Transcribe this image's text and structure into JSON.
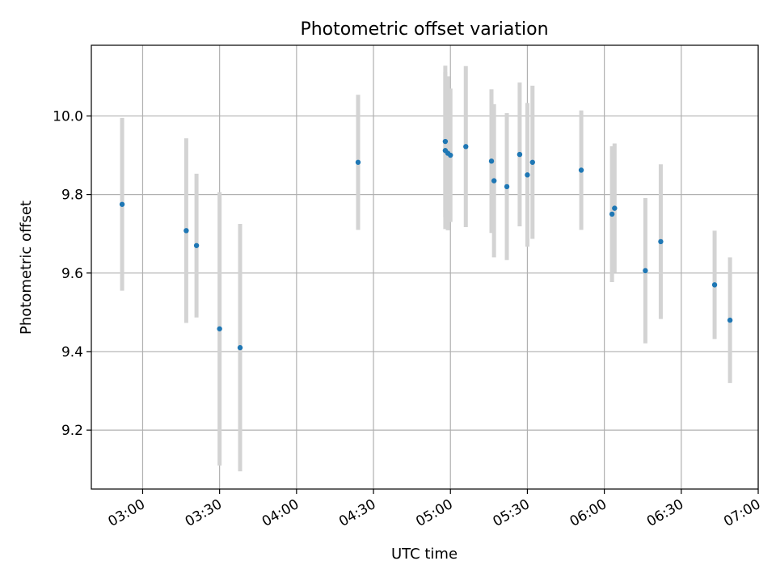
{
  "chart_data": {
    "type": "scatter",
    "title": "Photometric offset variation",
    "xlabel": "UTC time",
    "ylabel": "Photometric offset",
    "xlim": [
      "02:40",
      "07:00"
    ],
    "ylim": [
      9.05,
      10.18
    ],
    "x_ticks": [
      "03:00",
      "03:30",
      "04:00",
      "04:30",
      "05:00",
      "05:30",
      "06:00",
      "06:30",
      "07:00"
    ],
    "y_ticks": [
      "9.2",
      "9.4",
      "9.6",
      "9.8",
      "10.0"
    ],
    "grid": true,
    "legend": "none",
    "colors": {
      "point": "#1f77b4",
      "errorbar": "#d3d3d3",
      "grid": "#b0b0b0"
    },
    "points": [
      {
        "x": "02:52",
        "y": 9.775,
        "err": 0.22
      },
      {
        "x": "03:17",
        "y": 9.708,
        "err": 0.235
      },
      {
        "x": "03:21",
        "y": 9.67,
        "err": 0.183
      },
      {
        "x": "03:30",
        "y": 9.458,
        "err": 0.348
      },
      {
        "x": "03:38",
        "y": 9.41,
        "err": 0.315
      },
      {
        "x": "04:24",
        "y": 9.882,
        "err": 0.172
      },
      {
        "x": "04:58",
        "y": 9.935,
        "err": 0.193
      },
      {
        "x": "04:58",
        "y": 9.912,
        "err": 0.2
      },
      {
        "x": "04:59",
        "y": 9.905,
        "err": 0.196
      },
      {
        "x": "05:00",
        "y": 9.9,
        "err": 0.17
      },
      {
        "x": "05:06",
        "y": 9.922,
        "err": 0.205
      },
      {
        "x": "05:16",
        "y": 9.885,
        "err": 0.183
      },
      {
        "x": "05:17",
        "y": 9.835,
        "err": 0.195
      },
      {
        "x": "05:22",
        "y": 9.82,
        "err": 0.187
      },
      {
        "x": "05:27",
        "y": 9.902,
        "err": 0.183
      },
      {
        "x": "05:30",
        "y": 9.85,
        "err": 0.183
      },
      {
        "x": "05:32",
        "y": 9.882,
        "err": 0.195
      },
      {
        "x": "05:51",
        "y": 9.862,
        "err": 0.152
      },
      {
        "x": "06:03",
        "y": 9.75,
        "err": 0.173
      },
      {
        "x": "06:04",
        "y": 9.765,
        "err": 0.165
      },
      {
        "x": "06:16",
        "y": 9.606,
        "err": 0.185
      },
      {
        "x": "06:22",
        "y": 9.68,
        "err": 0.197
      },
      {
        "x": "06:43",
        "y": 9.57,
        "err": 0.138
      },
      {
        "x": "06:49",
        "y": 9.48,
        "err": 0.16
      }
    ]
  }
}
